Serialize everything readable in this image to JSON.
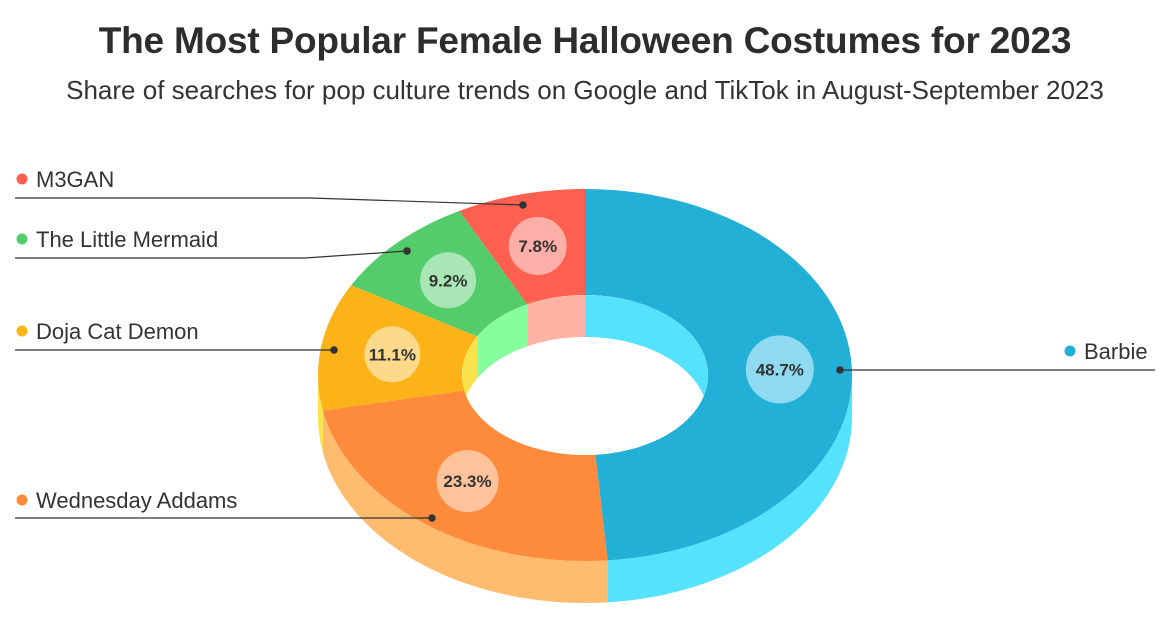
{
  "chart_data": {
    "type": "pie",
    "style": "3d-donut",
    "title": "The Most Popular Female Halloween Costumes for 2023",
    "subtitle": "Share of searches for pop culture trends on Google and TikTok in August-September 2023",
    "unit": "%",
    "slices": [
      {
        "label": "Barbie",
        "value": 48.7,
        "value_label": "48.7%",
        "color": "#22b0d7",
        "side_color": "#54e2fe",
        "bubble_color": "#8fdaf0"
      },
      {
        "label": "Wednesday Addams",
        "value": 23.3,
        "value_label": "23.3%",
        "color": "#fe8a3b",
        "side_color": "#ffbb6e",
        "bubble_color": "#ffc39c"
      },
      {
        "label": "Doja Cat Demon",
        "value": 11.1,
        "value_label": "11.1%",
        "color": "#fbb317",
        "side_color": "#f9e34b",
        "bubble_color": "#fdd98b"
      },
      {
        "label": "The Little Mermaid",
        "value": 9.2,
        "value_label": "9.2%",
        "color": "#54cc6c",
        "side_color": "#87fe9e",
        "bubble_color": "#a9e6b6"
      },
      {
        "label": "M3GAN",
        "value": 7.8,
        "value_label": "7.8%",
        "color": "#ff6050",
        "side_color": "#ffb3a5",
        "bubble_color": "#ffafa8"
      }
    ],
    "legend_placement": "left and right with leader lines"
  }
}
